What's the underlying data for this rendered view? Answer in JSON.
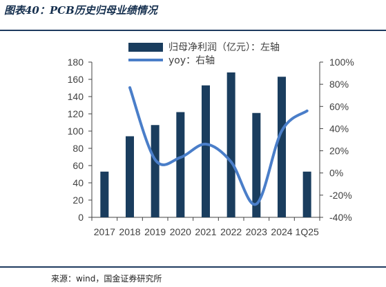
{
  "figure": {
    "title": "图表40：PCB历史归母业绩情况",
    "source": "来源：wind，国金证券研究所"
  },
  "colors": {
    "bar": "#1a3d5e",
    "line": "#4a7ec9",
    "rule": "#1e3a5f",
    "axis": "#404040"
  },
  "chart_data": {
    "type": "bar+line",
    "title": "",
    "categories": [
      "2017",
      "2018",
      "2019",
      "2020",
      "2021",
      "2022",
      "2023",
      "2024",
      "1Q25"
    ],
    "series": [
      {
        "name": "归母净利润（亿元）：左轴",
        "type": "bar",
        "axis": "left",
        "values": [
          53,
          94,
          107,
          122,
          153,
          168,
          121,
          163,
          53
        ]
      },
      {
        "name": "yoy：右轴",
        "type": "line",
        "axis": "right",
        "values": [
          null,
          77,
          12,
          14,
          26,
          10,
          -28,
          38,
          56
        ]
      }
    ],
    "y_left": {
      "min": 0,
      "max": 180,
      "ticks": [
        0,
        20,
        40,
        60,
        80,
        100,
        120,
        140,
        160,
        180
      ]
    },
    "y_right": {
      "min": -40,
      "max": 100,
      "ticks": [
        "-40%",
        "-20%",
        "0%",
        "20%",
        "40%",
        "60%",
        "80%",
        "100%"
      ],
      "tick_values": [
        -40,
        -20,
        0,
        20,
        40,
        60,
        80,
        100
      ]
    },
    "legend": "top-center",
    "grid": false
  }
}
